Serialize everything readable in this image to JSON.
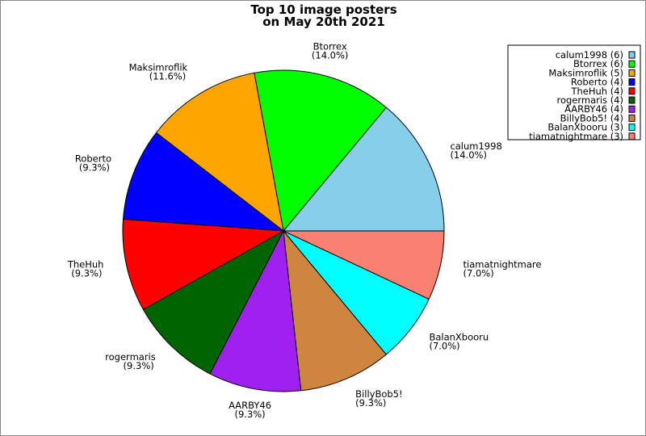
{
  "chart_data": {
    "type": "pie",
    "title": [
      "Top 10 image posters",
      "on May 20th 2021"
    ],
    "legend_position": "top-right",
    "slices": [
      {
        "label": "calum1998",
        "value": 6,
        "percent": "14.0%",
        "color": "#87ceeb"
      },
      {
        "label": "Btorrex",
        "value": 6,
        "percent": "14.0%",
        "color": "#00ff00"
      },
      {
        "label": "Maksimroflik",
        "value": 5,
        "percent": "11.6%",
        "color": "#ffa500"
      },
      {
        "label": "Roberto",
        "value": 4,
        "percent": "9.3%",
        "color": "#0000ff"
      },
      {
        "label": "TheHuh",
        "value": 4,
        "percent": "9.3%",
        "color": "#ff0000"
      },
      {
        "label": "rogermaris",
        "value": 4,
        "percent": "9.3%",
        "color": "#006400"
      },
      {
        "label": "AARBY46",
        "value": 4,
        "percent": "9.3%",
        "color": "#a020f0"
      },
      {
        "label": "BillyBob5!",
        "value": 4,
        "percent": "9.3%",
        "color": "#cd853f"
      },
      {
        "label": "BalanXbooru",
        "value": 3,
        "percent": "7.0%",
        "color": "#00ffff"
      },
      {
        "label": "tiamatnightmare",
        "value": 3,
        "percent": "7.0%",
        "color": "#fa8072"
      }
    ]
  }
}
